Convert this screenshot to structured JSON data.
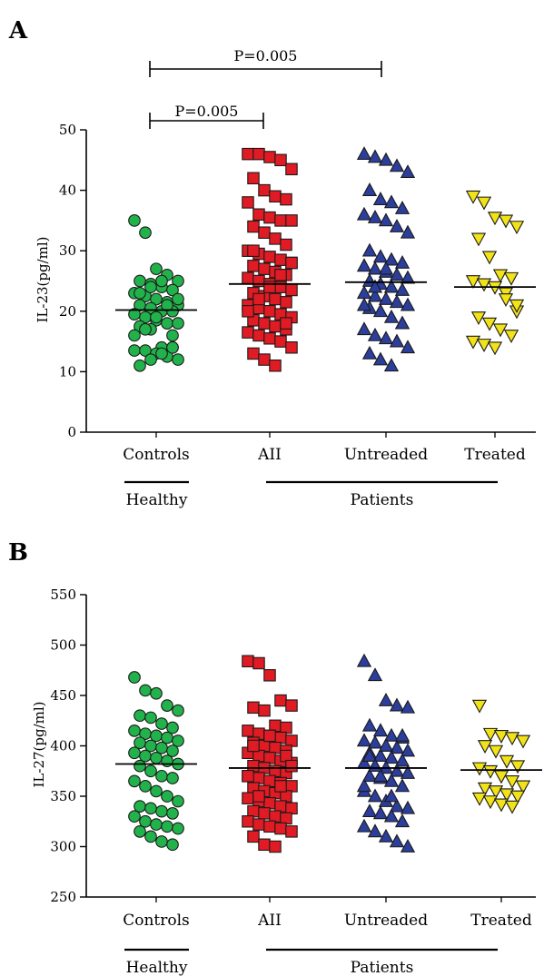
{
  "chart_data": [
    {
      "panel_label": "A",
      "type": "scatter",
      "ylabel": "IL-23(pg/ml)",
      "ylim": [
        0,
        50
      ],
      "yticks": [
        0,
        10,
        20,
        30,
        40,
        50
      ],
      "categories": [
        "Controls",
        "AII",
        "Untreaded",
        "Treated"
      ],
      "groups": [
        {
          "label": "Healthy",
          "members": [
            "Controls"
          ]
        },
        {
          "label": "Patients",
          "members": [
            "AII",
            "Untreaded",
            "Treated"
          ]
        }
      ],
      "annotations": [
        {
          "text": "P=0.005",
          "from": "Controls",
          "to": "AII"
        },
        {
          "text": "P=0.005",
          "from": "Controls",
          "to": "Untreaded"
        }
      ],
      "series": [
        {
          "category": "Controls",
          "marker": "circle",
          "color": "#22b24c",
          "mean": 20.2,
          "values": [
            35,
            33,
            27,
            26,
            25,
            25,
            24.5,
            24,
            23.5,
            23,
            22.5,
            22,
            21.5,
            21,
            21,
            20.5,
            20,
            20,
            19.5,
            19,
            18.5,
            18,
            18,
            17.5,
            17,
            14,
            14,
            13.5,
            13.5,
            13,
            12.5,
            12,
            11,
            12,
            13,
            14,
            16,
            17,
            19,
            21,
            22,
            23,
            24,
            25,
            16
          ]
        },
        {
          "category": "AII",
          "marker": "square",
          "color": "#e01b24",
          "mean": 24.5,
          "values": [
            46,
            46,
            45.5,
            45,
            43.5,
            42,
            40,
            39,
            38.5,
            38,
            36,
            35.5,
            35,
            35,
            34,
            33,
            32,
            31,
            30,
            29.5,
            29,
            28.5,
            28,
            27.5,
            27,
            26.5,
            26,
            25.5,
            25,
            24.5,
            24,
            23.5,
            23,
            22.5,
            22,
            21.5,
            21,
            20.5,
            20,
            19.5,
            19,
            18.5,
            18,
            17.5,
            17,
            16.5,
            16,
            15.5,
            15,
            14,
            13,
            12,
            11,
            18,
            20,
            22,
            24,
            26,
            28,
            30
          ]
        },
        {
          "category": "Untreaded",
          "marker": "triangle-up",
          "color": "#2c3e9c",
          "mean": 24.8,
          "values": [
            46,
            45.5,
            45,
            44,
            43,
            40,
            38.5,
            38,
            37,
            36,
            35.5,
            35,
            34,
            33,
            30,
            29,
            28.5,
            28,
            27.5,
            27,
            26.5,
            26,
            25.5,
            25,
            24.5,
            24,
            23.5,
            23,
            22.5,
            22,
            21.5,
            21,
            20.5,
            20,
            19,
            18,
            17,
            16,
            15.5,
            15,
            14,
            13,
            12,
            11,
            18,
            21,
            24,
            27
          ]
        },
        {
          "category": "Treated",
          "marker": "triangle-down",
          "color": "#f2e218",
          "mean": 24,
          "values": [
            39,
            38,
            35.5,
            35,
            34,
            32,
            29,
            26,
            25.5,
            25,
            24.5,
            24,
            23,
            20,
            19,
            18,
            17,
            16,
            15,
            14.5,
            14,
            22,
            21
          ]
        }
      ]
    },
    {
      "panel_label": "B",
      "type": "scatter",
      "ylabel": "IL-27(pg/ml)",
      "ylim": [
        250,
        550
      ],
      "yticks": [
        250,
        300,
        350,
        400,
        450,
        500,
        550
      ],
      "categories": [
        "Controls",
        "AII",
        "Untreaded",
        "Treated"
      ],
      "groups": [
        {
          "label": "Healthy",
          "members": [
            "Controls"
          ]
        },
        {
          "label": "Patients",
          "members": [
            "AII",
            "Untreaded",
            "Treated"
          ]
        }
      ],
      "annotations": [],
      "series": [
        {
          "category": "Controls",
          "marker": "circle",
          "color": "#22b24c",
          "mean": 382,
          "values": [
            468,
            455,
            452,
            440,
            435,
            430,
            428,
            422,
            418,
            415,
            412,
            410,
            408,
            405,
            403,
            400,
            398,
            395,
            393,
            390,
            388,
            385,
            382,
            380,
            375,
            370,
            368,
            365,
            360,
            355,
            350,
            345,
            340,
            338,
            335,
            333,
            330,
            325,
            322,
            320,
            318,
            315,
            310,
            305,
            302
          ]
        },
        {
          "category": "AII",
          "marker": "square",
          "color": "#e01b24",
          "mean": 378,
          "values": [
            484,
            482,
            470,
            445,
            440,
            438,
            435,
            420,
            418,
            415,
            412,
            410,
            408,
            405,
            403,
            400,
            398,
            395,
            393,
            390,
            388,
            385,
            383,
            380,
            378,
            375,
            373,
            370,
            368,
            365,
            363,
            360,
            358,
            355,
            353,
            350,
            348,
            345,
            343,
            340,
            338,
            335,
            333,
            330,
            328,
            325,
            322,
            320,
            318,
            315,
            310,
            302,
            300,
            390,
            370,
            350,
            410,
            360,
            380,
            400
          ]
        },
        {
          "category": "Untreaded",
          "marker": "triangle-up",
          "color": "#2c3e9c",
          "mean": 378,
          "values": [
            484,
            470,
            445,
            440,
            438,
            420,
            415,
            410,
            408,
            405,
            403,
            400,
            398,
            395,
            393,
            390,
            388,
            385,
            383,
            380,
            378,
            375,
            373,
            370,
            368,
            365,
            360,
            355,
            350,
            345,
            340,
            338,
            335,
            333,
            330,
            325,
            320,
            315,
            310,
            305,
            300,
            390,
            370,
            350,
            410,
            360,
            380,
            400
          ]
        },
        {
          "category": "Treated",
          "marker": "triangle-down",
          "color": "#f2e218",
          "mean": 376,
          "values": [
            440,
            412,
            410,
            408,
            405,
            400,
            395,
            385,
            380,
            378,
            375,
            370,
            365,
            360,
            358,
            355,
            352,
            350,
            348,
            345,
            342,
            340
          ]
        }
      ]
    }
  ]
}
